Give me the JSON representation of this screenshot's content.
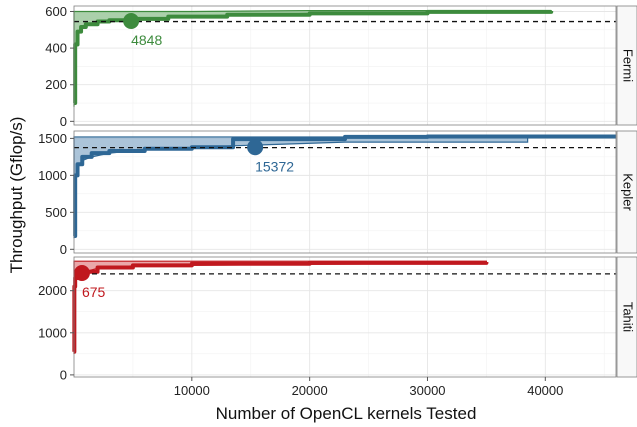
{
  "chart_data": {
    "type": "line",
    "xlabel": "Number of OpenCL kernels Tested",
    "ylabel": "Throughput (Gflop/s)",
    "xlim": [
      0,
      46000
    ],
    "x_ticks": [
      10000,
      20000,
      30000,
      40000
    ],
    "x_tick_labels": [
      "10000",
      "20000",
      "30000",
      "40000"
    ],
    "grid": true,
    "panels": [
      {
        "name": "Fermi",
        "color": "#3d8b3d",
        "band_color": "#8fc08f",
        "ylim": [
          -20,
          630
        ],
        "y_ticks": [
          0,
          200,
          400,
          600
        ],
        "y_tick_labels": [
          "0",
          "200",
          "400",
          "600"
        ],
        "baseline": 545,
        "marker": {
          "x": 4848,
          "y": 548,
          "label": "4848"
        },
        "series": {
          "x": [
            0,
            100,
            300,
            600,
            1000,
            2000,
            3000,
            4848,
            8000,
            13000,
            20000,
            30000,
            40500
          ],
          "y": [
            100,
            420,
            490,
            515,
            530,
            545,
            552,
            560,
            572,
            582,
            590,
            598,
            603
          ]
        },
        "band": {
          "x": [
            0,
            100,
            300,
            600,
            1000,
            2000,
            4848,
            10000,
            20000,
            40500
          ],
          "lower": [
            80,
            410,
            470,
            500,
            520,
            540,
            555,
            575,
            590,
            600
          ],
          "upper": [
            600,
            600,
            600,
            600,
            600,
            600,
            600,
            600,
            605,
            605
          ]
        }
      },
      {
        "name": "Kepler",
        "color": "#2e6795",
        "band_color": "#8fb0cc",
        "ylim": [
          -50,
          1600
        ],
        "y_ticks": [
          0,
          500,
          1000,
          1500
        ],
        "y_tick_labels": [
          "0",
          "500",
          "1000",
          "1500"
        ],
        "baseline": 1375,
        "marker": {
          "x": 15372,
          "y": 1380,
          "label": "15372"
        },
        "series": {
          "x": [
            0,
            100,
            300,
            700,
            1500,
            3000,
            6000,
            10000,
            13500,
            15372,
            23000,
            30000,
            46000
          ],
          "y": [
            180,
            1000,
            1150,
            1250,
            1300,
            1330,
            1360,
            1380,
            1490,
            1490,
            1520,
            1525,
            1525
          ]
        },
        "band": {
          "x": [
            0,
            100,
            300,
            700,
            1500,
            3000,
            6000,
            13500,
            23000,
            38500
          ],
          "lower": [
            150,
            900,
            1100,
            1200,
            1250,
            1300,
            1350,
            1400,
            1450,
            1450
          ],
          "upper": [
            1520,
            1520,
            1520,
            1520,
            1520,
            1520,
            1520,
            1520,
            1520,
            1520
          ]
        }
      },
      {
        "name": "Tahiti",
        "color": "#c0181e",
        "band_color": "#e38a8c",
        "ylim": [
          -50,
          2800
        ],
        "y_ticks": [
          0,
          1000,
          2000
        ],
        "y_tick_labels": [
          "0",
          "1000",
          "2000"
        ],
        "baseline": 2400,
        "marker": {
          "x": 675,
          "y": 2420,
          "label": "675"
        },
        "series": {
          "x": [
            0,
            30,
            100,
            300,
            675,
            2000,
            5000,
            10000,
            20000,
            35000
          ],
          "y": [
            550,
            2100,
            2300,
            2400,
            2450,
            2550,
            2600,
            2640,
            2660,
            2680
          ]
        },
        "band": {
          "x": [
            0,
            100,
            300,
            675,
            2000,
            5000,
            35000
          ],
          "lower": [
            500,
            2250,
            2380,
            2430,
            2530,
            2590,
            2660
          ],
          "upper": [
            2700,
            2700,
            2700,
            2700,
            2700,
            2700,
            2700
          ]
        }
      }
    ]
  }
}
